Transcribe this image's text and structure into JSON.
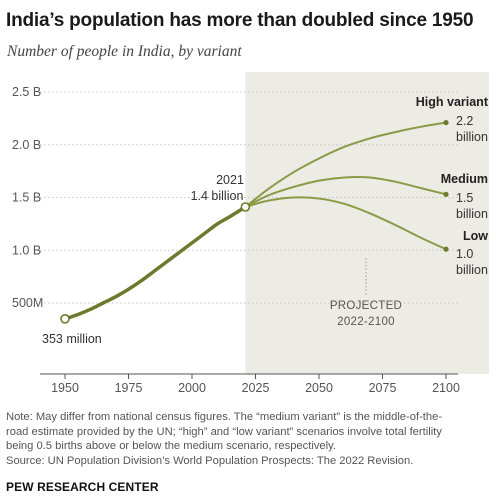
{
  "header": {
    "title": "India’s population has more than doubled since 1950",
    "subtitle": "Number of people in India, by variant"
  },
  "colors": {
    "line": "#6b7a2c",
    "line_projection": "#8a9a46",
    "shade": "#ecebe4",
    "grid": "#c7c7c7"
  },
  "chart_data": {
    "type": "line",
    "title": "India’s population has more than doubled since 1950",
    "subtitle": "Number of people in India, by variant",
    "xlim": [
      1950,
      2100
    ],
    "ylim": [
      0,
      2.5
    ],
    "y_unit": "billion",
    "grid": true,
    "x_ticks": [
      {
        "value": 1950,
        "label": "1950"
      },
      {
        "value": 1975,
        "label": "1975"
      },
      {
        "value": 2000,
        "label": "2000"
      },
      {
        "value": 2025,
        "label": "2025"
      },
      {
        "value": 2050,
        "label": "2050"
      },
      {
        "value": 2075,
        "label": "2075"
      },
      {
        "value": 2100,
        "label": "2100"
      }
    ],
    "y_ticks": [
      {
        "value": 0.5,
        "label": "500M"
      },
      {
        "value": 1.0,
        "label": "1.0 B"
      },
      {
        "value": 1.5,
        "label": "1.5  B"
      },
      {
        "value": 2.0,
        "label": "2.0 B"
      },
      {
        "value": 2.5,
        "label": "2.5 B"
      }
    ],
    "projection_region": {
      "start": 2021,
      "end": 2100,
      "label_line1": "PROJECTED",
      "label_line2": "2022-2100"
    },
    "historical": {
      "x": [
        1950,
        1955,
        1960,
        1965,
        1970,
        1975,
        1980,
        1985,
        1990,
        1995,
        2000,
        2005,
        2010,
        2015,
        2021
      ],
      "y": [
        0.35,
        0.39,
        0.44,
        0.5,
        0.56,
        0.63,
        0.71,
        0.8,
        0.89,
        0.98,
        1.07,
        1.16,
        1.25,
        1.32,
        1.41
      ]
    },
    "series": [
      {
        "name": "High variant",
        "x": [
          2021,
          2030,
          2040,
          2050,
          2060,
          2070,
          2080,
          2090,
          2100
        ],
        "y": [
          1.41,
          1.58,
          1.74,
          1.87,
          1.98,
          2.06,
          2.12,
          2.17,
          2.21
        ]
      },
      {
        "name": "Medium",
        "x": [
          2021,
          2030,
          2040,
          2050,
          2060,
          2070,
          2080,
          2090,
          2100
        ],
        "y": [
          1.41,
          1.52,
          1.6,
          1.66,
          1.69,
          1.69,
          1.65,
          1.59,
          1.53
        ]
      },
      {
        "name": "Low",
        "x": [
          2021,
          2030,
          2040,
          2050,
          2060,
          2070,
          2080,
          2090,
          2100
        ],
        "y": [
          1.41,
          1.47,
          1.5,
          1.49,
          1.44,
          1.35,
          1.24,
          1.12,
          1.01
        ]
      }
    ],
    "annotations": {
      "start": {
        "x": 1950,
        "y": 0.35,
        "label": "353 million"
      },
      "milestone": {
        "x": 2021,
        "y": 1.41,
        "line1": "2021",
        "line2": "1.4 billion"
      },
      "end_labels": [
        {
          "title": "High variant",
          "value": "2.2",
          "unit": "billion",
          "x": 2100,
          "y": 2.21
        },
        {
          "title": "Medium",
          "value": "1.5",
          "unit": "billion",
          "x": 2100,
          "y": 1.53
        },
        {
          "title": "Low",
          "value": "1.0",
          "unit": "billion",
          "x": 2100,
          "y": 1.01
        }
      ]
    }
  },
  "footer": {
    "note_lines": [
      "Note: May differ from national census figures. The “medium variant” is the middle-of-the-",
      "road estimate provided by the UN; “high” and “low variant” scenarios involve total fertility",
      "being 0.5 births above or below the medium scenario, respectively.",
      "Source: UN Population Division’s World Population Prospects: The 2022 Revision."
    ],
    "brand": "PEW RESEARCH CENTER"
  }
}
